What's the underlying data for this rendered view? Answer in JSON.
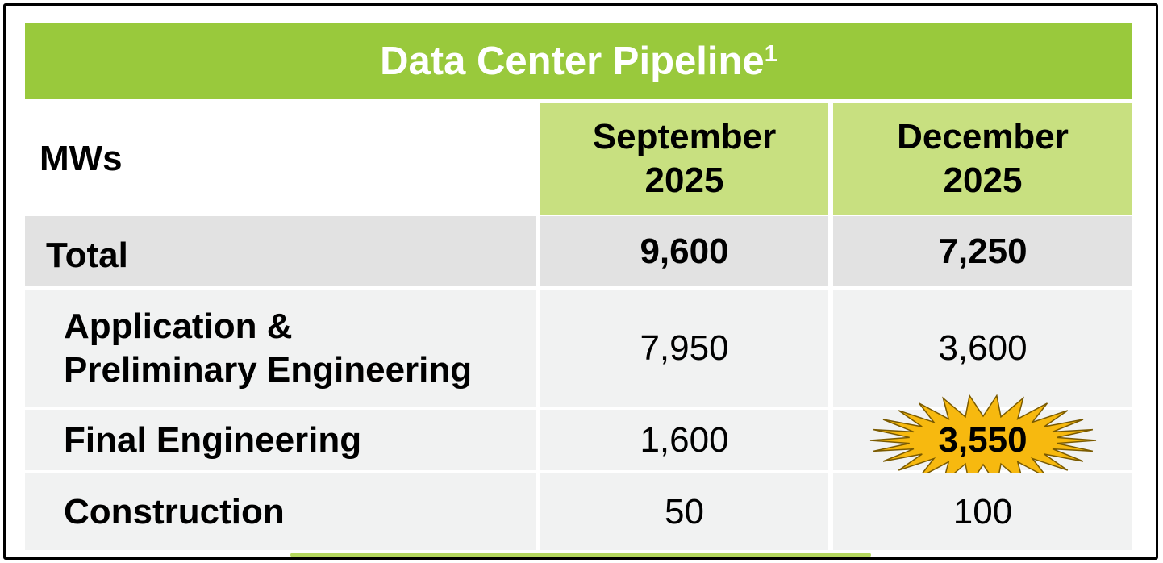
{
  "title": "Data Center Pipeline",
  "title_footnote": "1",
  "colors": {
    "title_bg": "#99c93c",
    "header_bg": "#c8e080",
    "total_row_bg": "#e2e2e2",
    "row_bg": "#f1f2f2",
    "highlight_burst": "#f7b90f"
  },
  "header": {
    "unit_label": "MWs",
    "col1_line1": "September",
    "col1_line2": "2025",
    "col2_line1": "December",
    "col2_line2": "2025"
  },
  "rows": [
    {
      "label": "Total",
      "sep": "9,600",
      "dec": "7,250"
    },
    {
      "label_line1": "Application &",
      "label_line2": "Preliminary Engineering",
      "sep": "7,950",
      "dec": "3,600"
    },
    {
      "label": "Final Engineering",
      "sep": "1,600",
      "dec": "3,550"
    },
    {
      "label": "Construction",
      "sep": "50",
      "dec": "100"
    }
  ],
  "chart_data": {
    "type": "table",
    "title": "Data Center Pipeline",
    "columns": [
      "MWs",
      "September 2025",
      "December 2025"
    ],
    "rows": [
      [
        "Total",
        9600,
        7250
      ],
      [
        "Application & Preliminary Engineering",
        7950,
        3600
      ],
      [
        "Final Engineering",
        1600,
        3550
      ],
      [
        "Construction",
        50,
        100
      ]
    ],
    "highlighted_cell": {
      "row": "Final Engineering",
      "column": "December 2025"
    }
  }
}
